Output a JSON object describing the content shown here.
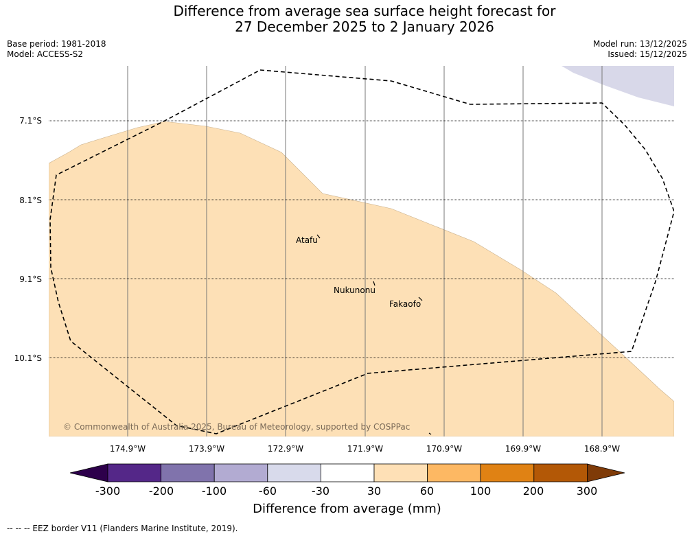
{
  "title": {
    "line1": "Difference from average sea surface height forecast for",
    "line2": "27 December 2025 to 2 January 2026"
  },
  "meta_left": {
    "base_period": "Base period: 1981-2018",
    "model": "Model: ACCESS-S2"
  },
  "meta_right": {
    "model_run": "Model run: 13/12/2025",
    "issued": "Issued: 15/12/2025"
  },
  "map": {
    "lat_labels": [
      "7.1°S",
      "8.1°S",
      "9.1°S",
      "10.1°S"
    ],
    "lon_labels": [
      "174.9°W",
      "173.9°W",
      "172.9°W",
      "171.9°W",
      "170.9°W",
      "169.9°W",
      "168.9°W"
    ],
    "places": [
      {
        "name": "Atafu"
      },
      {
        "name": "Nukunonu"
      },
      {
        "name": "Fakaofo"
      }
    ],
    "copyright": "© Commonwealth of Australia 2025, Bureau of Meteorology, supported by COSPPac",
    "colors": {
      "positive_30_60": "#fde0b6",
      "negative_30_60": "#d8d8e9",
      "eez_border": "#000000"
    }
  },
  "colorbar": {
    "ticks": [
      "-300",
      "-200",
      "-100",
      "-60",
      "-30",
      "30",
      "60",
      "100",
      "200",
      "300"
    ],
    "colors": [
      "#2d004b",
      "#542788",
      "#8073ac",
      "#b2abd2",
      "#d8daeb",
      "#ffffff",
      "#fee0b6",
      "#fdb863",
      "#e08214",
      "#b35806",
      "#7f3b08"
    ],
    "title": "Difference from average (mm)"
  },
  "footer": "--  --  -- EEZ border V11 (Flanders Marine Institute, 2019)."
}
